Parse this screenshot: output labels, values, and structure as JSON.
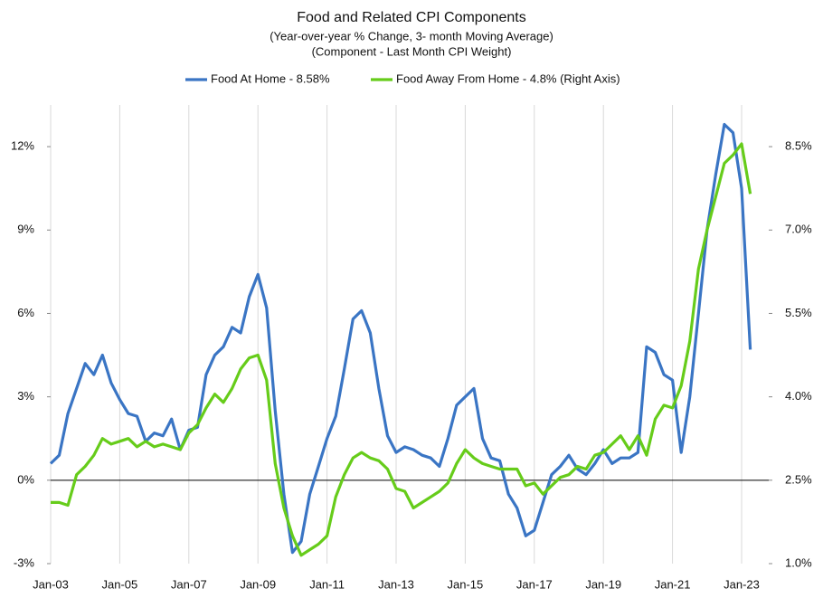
{
  "chart_data": {
    "type": "line",
    "title": "Food  and Related CPI Components",
    "subtitle": "(Year-over-year % Change, 3- month Moving Average)",
    "subtitle2": "(Component - Last Month CPI Weight)",
    "categories": [
      "Jan-03",
      null,
      null,
      null,
      null,
      null,
      null,
      null,
      "Jan-05",
      null,
      null,
      null,
      null,
      null,
      null,
      null,
      "Jan-07",
      null,
      null,
      null,
      null,
      null,
      null,
      null,
      "Jan-09",
      null,
      null,
      null,
      null,
      null,
      null,
      null,
      "Jan-11",
      null,
      null,
      null,
      null,
      null,
      null,
      null,
      "Jan-13",
      null,
      null,
      null,
      null,
      null,
      null,
      null,
      "Jan-15",
      null,
      null,
      null,
      null,
      null,
      null,
      null,
      "Jan-17",
      null,
      null,
      null,
      null,
      null,
      null,
      null,
      "Jan-19",
      null,
      null,
      null,
      null,
      null,
      null,
      null,
      "Jan-21",
      null,
      null,
      null,
      null,
      null,
      null,
      null,
      "Jan-23",
      null
    ],
    "series": [
      {
        "name": "Food At Home - 8.58%",
        "color": "#3a75c4",
        "axis": "y",
        "values": [
          0.6,
          0.9,
          2.4,
          3.3,
          4.2,
          3.8,
          4.5,
          3.5,
          2.9,
          2.4,
          2.3,
          1.4,
          1.7,
          1.6,
          2.2,
          1.1,
          1.8,
          1.9,
          3.8,
          4.5,
          4.8,
          5.5,
          5.3,
          6.6,
          7.4,
          6.2,
          2.5,
          -0.5,
          -2.6,
          -2.2,
          -0.5,
          0.5,
          1.5,
          2.3,
          4.0,
          5.8,
          6.1,
          5.3,
          3.3,
          1.6,
          1.0,
          1.2,
          1.1,
          0.9,
          0.8,
          0.5,
          1.5,
          2.7,
          3.0,
          3.3,
          1.5,
          0.8,
          0.7,
          -0.5,
          -1.0,
          -2.0,
          -1.8,
          -0.8,
          0.2,
          0.5,
          0.9,
          0.4,
          0.2,
          0.6,
          1.1,
          0.6,
          0.8,
          0.8,
          1.0,
          4.8,
          4.6,
          3.8,
          3.6,
          1.0,
          3.0,
          6.0,
          9.0,
          11.0,
          12.8,
          12.5,
          10.5,
          4.7
        ]
      },
      {
        "name": "Food Away From Home - 4.8% (Right Axis)",
        "color": "#66cc1a",
        "axis": "y2",
        "values": [
          2.1,
          2.1,
          2.05,
          2.6,
          2.75,
          2.95,
          3.25,
          3.15,
          3.2,
          3.25,
          3.1,
          3.2,
          3.1,
          3.15,
          3.1,
          3.05,
          3.35,
          3.5,
          3.8,
          4.05,
          3.9,
          4.15,
          4.5,
          4.7,
          4.75,
          4.3,
          2.8,
          2.0,
          1.5,
          1.15,
          1.25,
          1.35,
          1.5,
          2.2,
          2.6,
          2.9,
          3.0,
          2.9,
          2.85,
          2.7,
          2.35,
          2.3,
          2.0,
          2.1,
          2.2,
          2.3,
          2.45,
          2.8,
          3.05,
          2.9,
          2.8,
          2.75,
          2.7,
          2.7,
          2.7,
          2.4,
          2.45,
          2.25,
          2.4,
          2.55,
          2.6,
          2.75,
          2.7,
          2.95,
          3.0,
          3.15,
          3.3,
          3.05,
          3.3,
          2.95,
          3.6,
          3.85,
          3.8,
          4.2,
          5.0,
          6.3,
          7.0,
          7.6,
          8.2,
          8.35,
          8.55,
          7.65
        ]
      }
    ],
    "ylim": [
      -3,
      13.5
    ],
    "yticks": [
      {
        "value": -3,
        "label": "-3%"
      },
      {
        "value": 0,
        "label": "0%"
      },
      {
        "value": 3,
        "label": "3%"
      },
      {
        "value": 6,
        "label": "6%"
      },
      {
        "value": 9,
        "label": "9%"
      },
      {
        "value": 12,
        "label": "12%"
      }
    ],
    "y2lim": [
      1.0,
      9.25
    ],
    "y2ticks": [
      {
        "value": 1.0,
        "label": "1.0%"
      },
      {
        "value": 2.5,
        "label": "2.5%"
      },
      {
        "value": 4.0,
        "label": "4.0%"
      },
      {
        "value": 5.5,
        "label": "5.5%"
      },
      {
        "value": 7.0,
        "label": "7.0%"
      },
      {
        "value": 8.5,
        "label": "8.5%"
      }
    ],
    "grid": true,
    "legend": "top"
  }
}
